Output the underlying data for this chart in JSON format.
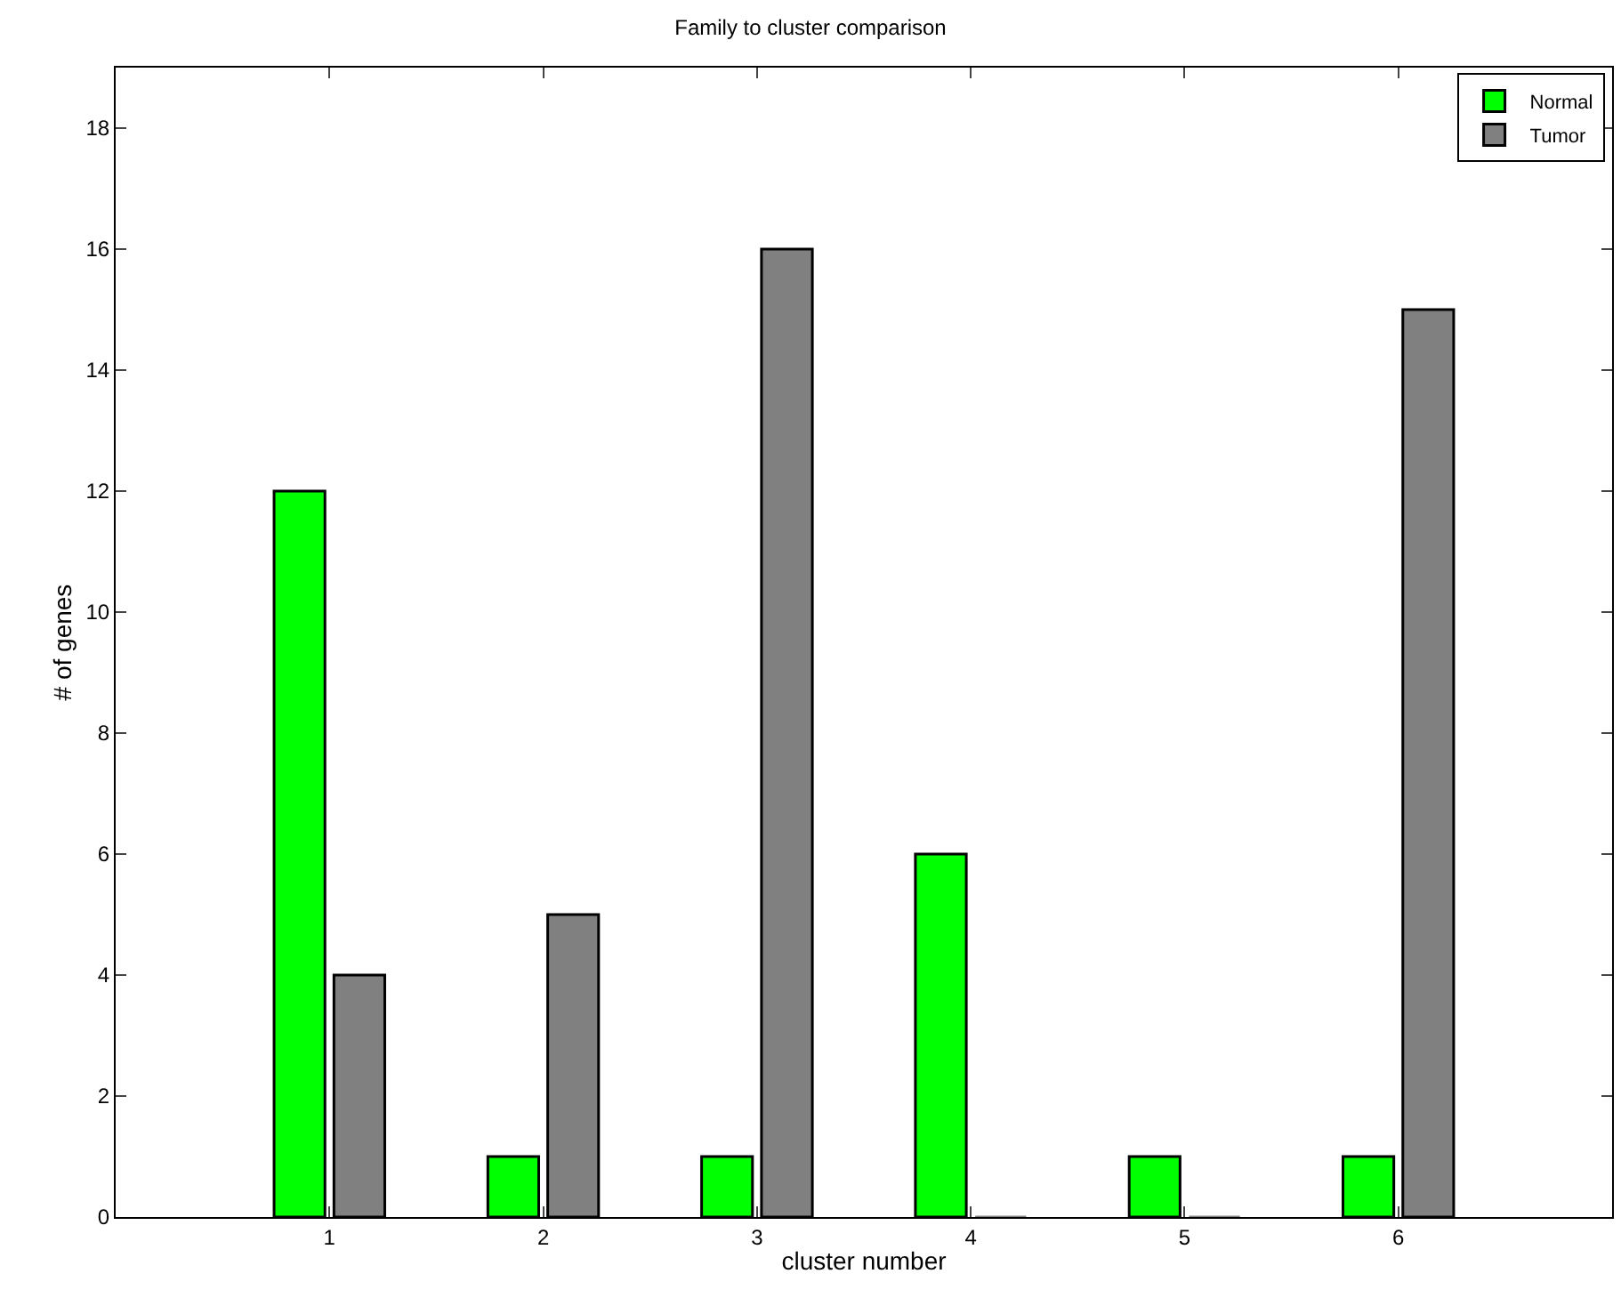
{
  "chart_data": {
    "type": "bar",
    "title": "Family to cluster comparison",
    "xlabel": "cluster number",
    "ylabel": "# of genes",
    "x": [
      1,
      2,
      3,
      4,
      5,
      6
    ],
    "series": [
      {
        "name": "Normal",
        "color": "#00ff00",
        "values": [
          12,
          1,
          1,
          6,
          1,
          1
        ]
      },
      {
        "name": "Tumor",
        "color": "#808080",
        "values": [
          4,
          5,
          16,
          0,
          0,
          15
        ]
      }
    ],
    "xlim": [
      0,
      7
    ],
    "xticks": [
      1,
      2,
      3,
      4,
      5,
      6
    ],
    "ylim": [
      0,
      19
    ],
    "yticks": [
      0,
      2,
      4,
      6,
      8,
      10,
      12,
      14,
      16,
      18
    ],
    "legend": "top right"
  }
}
